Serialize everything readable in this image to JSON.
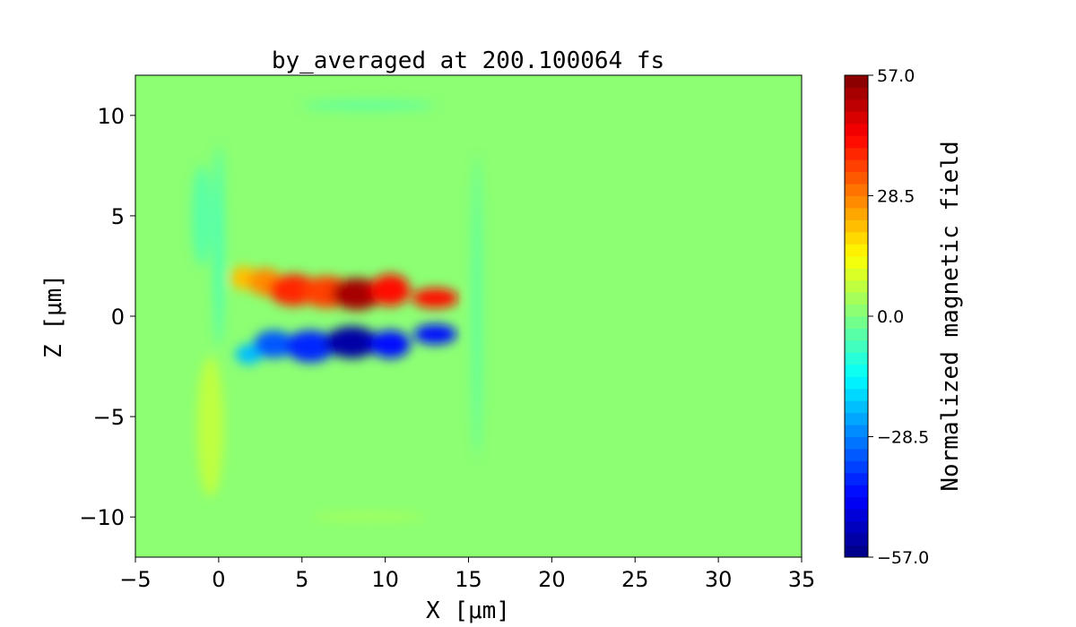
{
  "chart_data": {
    "type": "heatmap",
    "title": "by_averaged at 200.100064 fs",
    "xlabel": "X [μm]",
    "ylabel": "Z [μm]",
    "xlim": [
      -5,
      35
    ],
    "ylim": [
      -12,
      12
    ],
    "x_ticks": [
      -5,
      0,
      5,
      10,
      15,
      20,
      25,
      30,
      35
    ],
    "y_ticks": [
      -10,
      -5,
      0,
      5,
      10
    ],
    "colormap": "jet",
    "colorbar": {
      "label": "Normalized magnetic field",
      "range": [
        -57.0,
        57.0
      ],
      "ticks": [
        "−57.0",
        "−28.5",
        "0.0",
        "28.5",
        "57.0"
      ],
      "levels": 40
    },
    "background_value": 0.0,
    "features": [
      {
        "x": 1.5,
        "z": 1.9,
        "rx": 0.8,
        "rz": 0.6,
        "value": 22
      },
      {
        "x": 2.8,
        "z": 1.7,
        "rx": 1.0,
        "rz": 0.7,
        "value": 28
      },
      {
        "x": 4.5,
        "z": 1.3,
        "rx": 1.5,
        "rz": 0.8,
        "value": 38
      },
      {
        "x": 6.5,
        "z": 1.2,
        "rx": 1.5,
        "rz": 0.8,
        "value": 36
      },
      {
        "x": 8.3,
        "z": 1.1,
        "rx": 1.5,
        "rz": 0.8,
        "value": 52
      },
      {
        "x": 10.3,
        "z": 1.3,
        "rx": 1.2,
        "rz": 0.8,
        "value": 40
      },
      {
        "x": 13.0,
        "z": 0.9,
        "rx": 1.4,
        "rz": 0.5,
        "value": 42
      },
      {
        "x": 1.8,
        "z": -1.9,
        "rx": 0.8,
        "rz": 0.5,
        "value": -22
      },
      {
        "x": 3.3,
        "z": -1.4,
        "rx": 1.2,
        "rz": 0.7,
        "value": -32
      },
      {
        "x": 5.5,
        "z": -1.5,
        "rx": 1.5,
        "rz": 0.8,
        "value": -38
      },
      {
        "x": 8.0,
        "z": -1.3,
        "rx": 1.6,
        "rz": 0.8,
        "value": -52
      },
      {
        "x": 10.3,
        "z": -1.4,
        "rx": 1.2,
        "rz": 0.7,
        "value": -40
      },
      {
        "x": 13.0,
        "z": -0.9,
        "rx": 1.3,
        "rz": 0.5,
        "value": -42
      },
      {
        "x": 0.0,
        "z": 3.5,
        "rx": 0.25,
        "rz": 5.0,
        "value": -7
      },
      {
        "x": -1.0,
        "z": 5.0,
        "rx": 0.6,
        "rz": 2.5,
        "value": -5
      },
      {
        "x": -0.5,
        "z": -5.5,
        "rx": 0.8,
        "rz": 3.5,
        "value": 8
      },
      {
        "x": 15.5,
        "z": 0.5,
        "rx": 0.25,
        "rz": 7.5,
        "value": -5
      },
      {
        "x": 9.0,
        "z": 10.5,
        "rx": 4.0,
        "rz": 0.2,
        "value": -5
      },
      {
        "x": 9.0,
        "z": -10.0,
        "rx": 3.5,
        "rz": 0.2,
        "value": 5
      }
    ]
  }
}
